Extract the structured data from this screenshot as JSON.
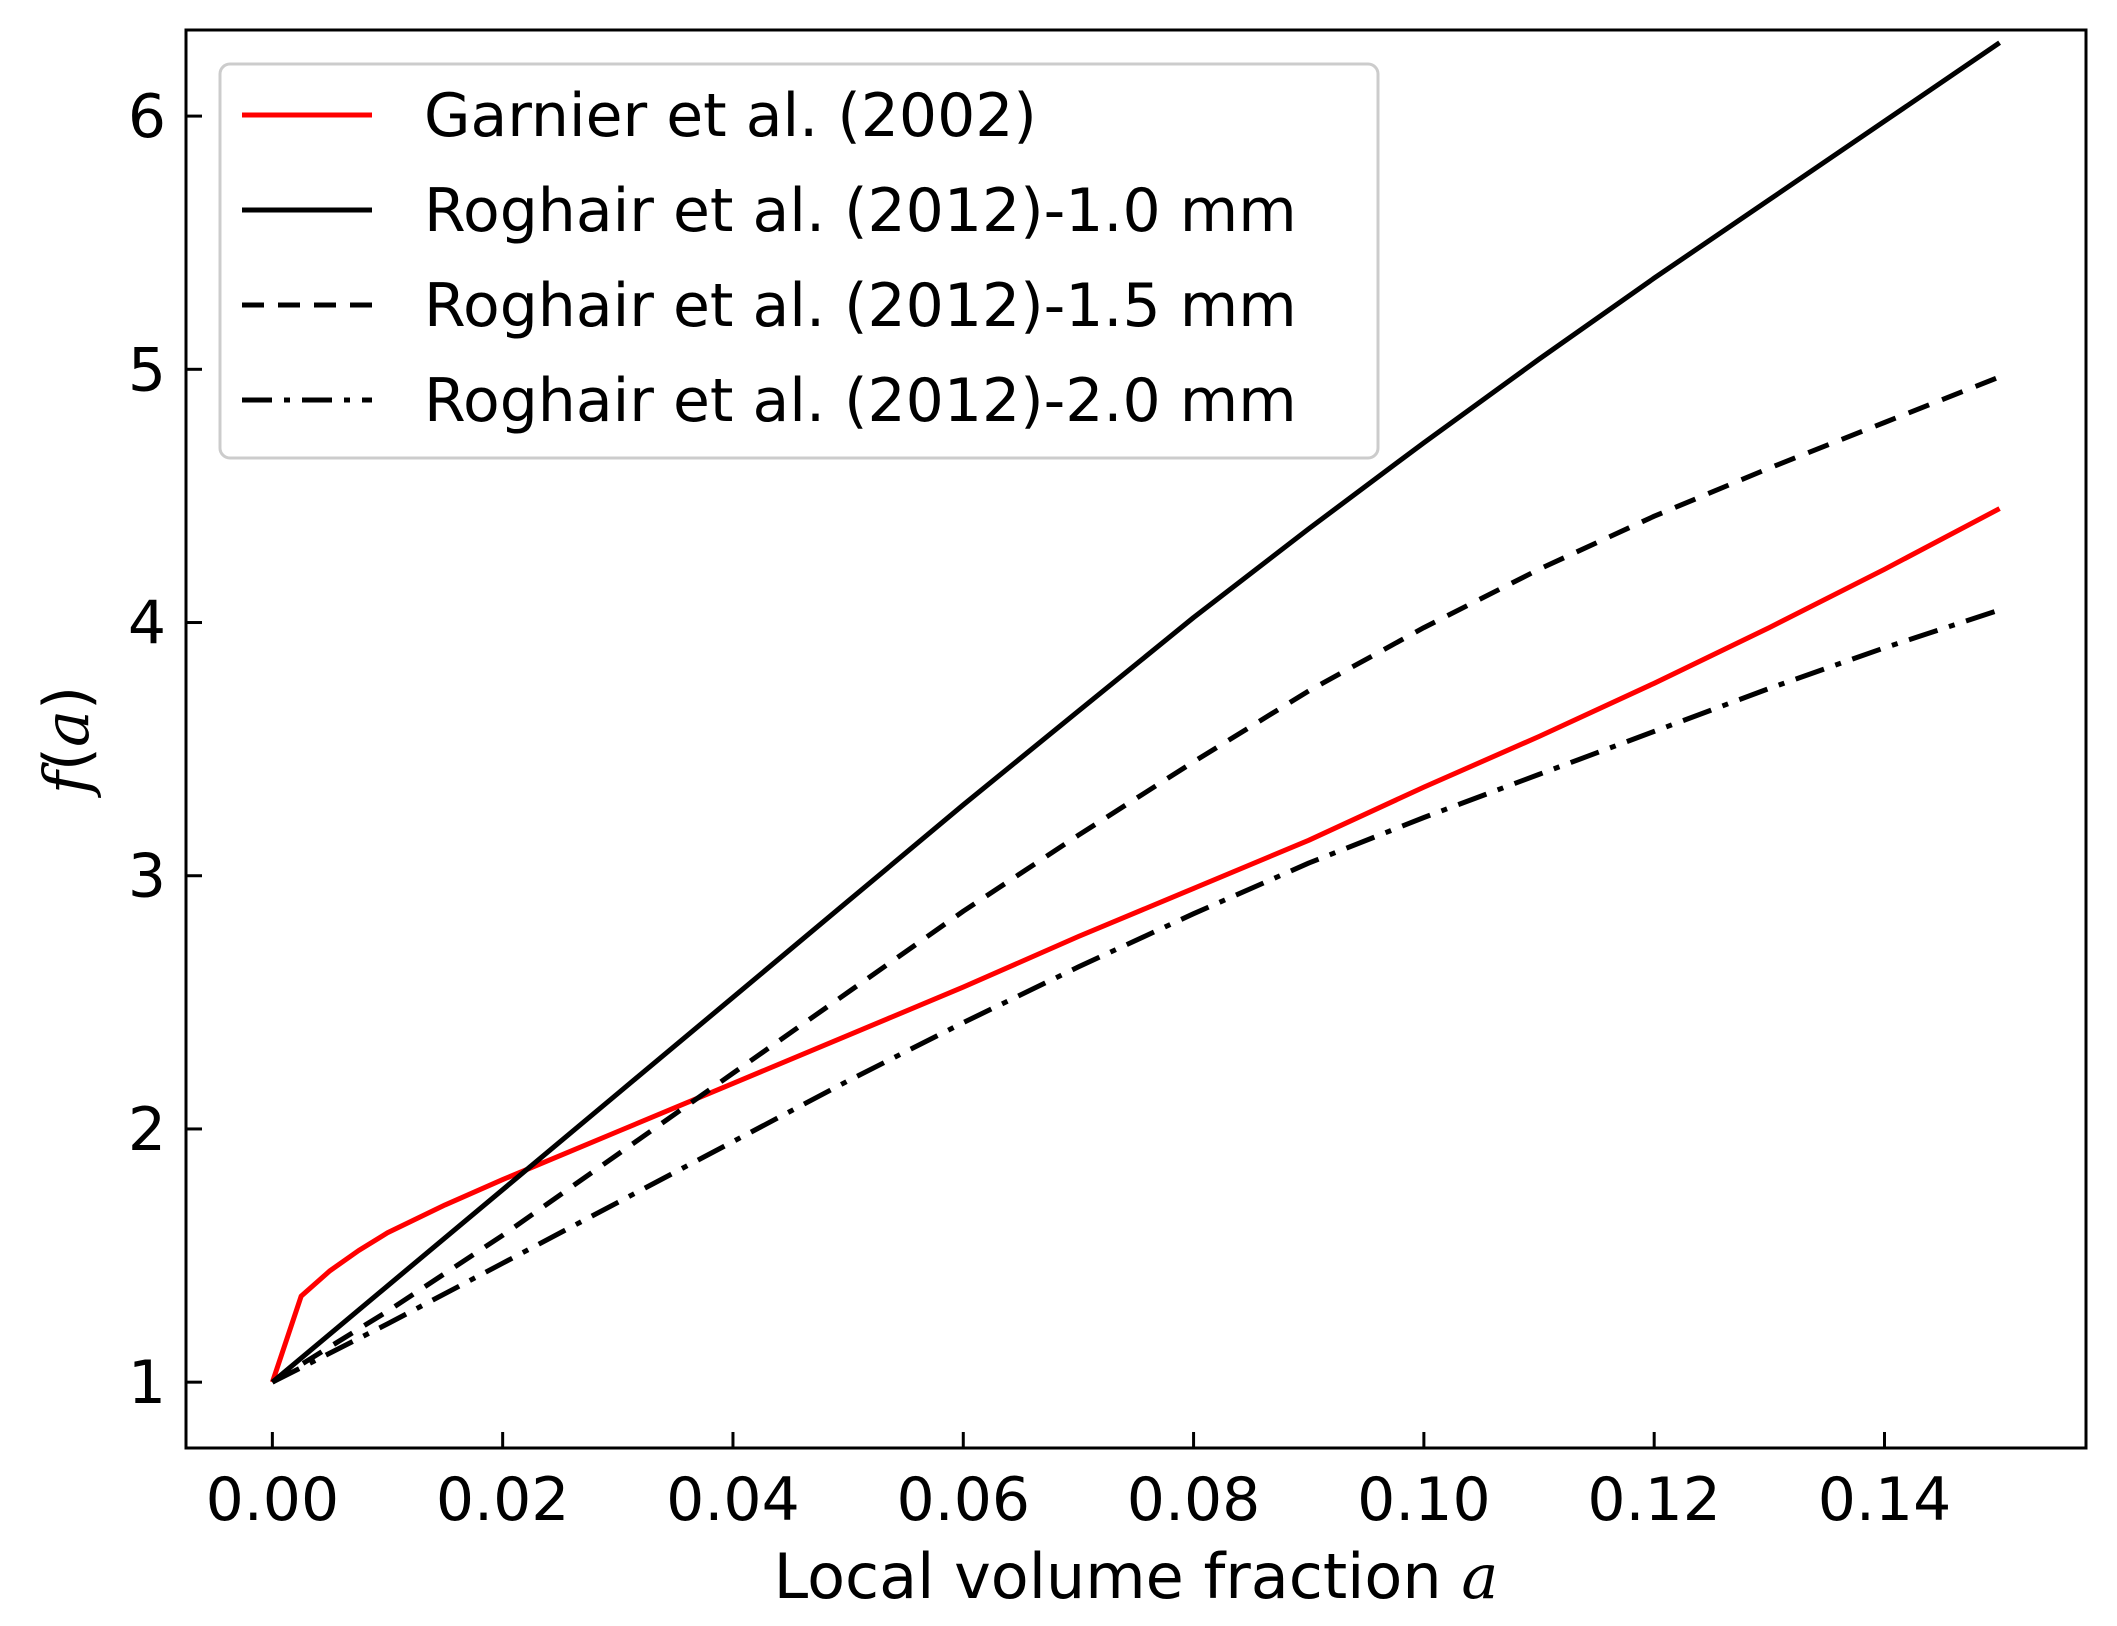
{
  "chart_data": {
    "type": "line",
    "xlabel": "Local volume fraction",
    "xlabel_var": "a",
    "ylabel_func": "f",
    "ylabel_var": "a",
    "xlim": [
      -0.0075,
      0.1575
    ],
    "ylim": [
      0.74,
      6.34
    ],
    "xticks": [
      0.0,
      0.02,
      0.04,
      0.06,
      0.08,
      0.1,
      0.12,
      0.14
    ],
    "xtick_labels": [
      "0.00",
      "0.02",
      "0.04",
      "0.06",
      "0.08",
      "0.10",
      "0.12",
      "0.14"
    ],
    "yticks": [
      1,
      2,
      3,
      4,
      5,
      6
    ],
    "ytick_labels": [
      "1",
      "2",
      "3",
      "4",
      "5",
      "6"
    ],
    "grid": false,
    "legend_position": "top-left",
    "series": [
      {
        "name": "Garnier et al. (2002)",
        "color": "#ff0000",
        "dash": "solid",
        "x": [
          0.0,
          0.0025,
          0.005,
          0.0075,
          0.01,
          0.015,
          0.02,
          0.03,
          0.04,
          0.05,
          0.06,
          0.07,
          0.08,
          0.09,
          0.1,
          0.11,
          0.12,
          0.13,
          0.14,
          0.15
        ],
        "y": [
          1.0,
          1.34,
          1.44,
          1.52,
          1.59,
          1.7,
          1.8,
          1.99,
          2.18,
          2.37,
          2.56,
          2.76,
          2.95,
          3.14,
          3.35,
          3.55,
          3.76,
          3.98,
          4.21,
          4.45
        ]
      },
      {
        "name": "Roghair et al. (2012)-1.0 mm",
        "color": "#000000",
        "dash": "solid",
        "x": [
          0.0,
          0.01,
          0.02,
          0.03,
          0.04,
          0.05,
          0.06,
          0.07,
          0.08,
          0.09,
          0.1,
          0.11,
          0.12,
          0.13,
          0.14,
          0.15
        ],
        "y": [
          1.0,
          1.38,
          1.76,
          2.14,
          2.52,
          2.9,
          3.28,
          3.65,
          4.02,
          4.37,
          4.71,
          5.04,
          5.36,
          5.67,
          5.98,
          6.29
        ]
      },
      {
        "name": "Roghair et al. (2012)-1.5 mm",
        "color": "#000000",
        "dash": "dashed",
        "x": [
          0.0,
          0.01,
          0.02,
          0.03,
          0.04,
          0.05,
          0.06,
          0.07,
          0.08,
          0.09,
          0.1,
          0.11,
          0.12,
          0.13,
          0.14,
          0.15
        ],
        "y": [
          1.0,
          1.28,
          1.58,
          1.9,
          2.22,
          2.54,
          2.86,
          3.16,
          3.45,
          3.73,
          3.98,
          4.21,
          4.42,
          4.61,
          4.79,
          4.97
        ]
      },
      {
        "name": "Roghair et al. (2012)-2.0 mm",
        "color": "#000000",
        "dash": "dashdot",
        "x": [
          0.0,
          0.01,
          0.02,
          0.03,
          0.04,
          0.05,
          0.06,
          0.07,
          0.08,
          0.09,
          0.1,
          0.11,
          0.12,
          0.13,
          0.14,
          0.15
        ],
        "y": [
          1.0,
          1.23,
          1.47,
          1.71,
          1.95,
          2.19,
          2.42,
          2.64,
          2.85,
          3.05,
          3.23,
          3.4,
          3.57,
          3.74,
          3.9,
          4.05
        ]
      }
    ]
  }
}
